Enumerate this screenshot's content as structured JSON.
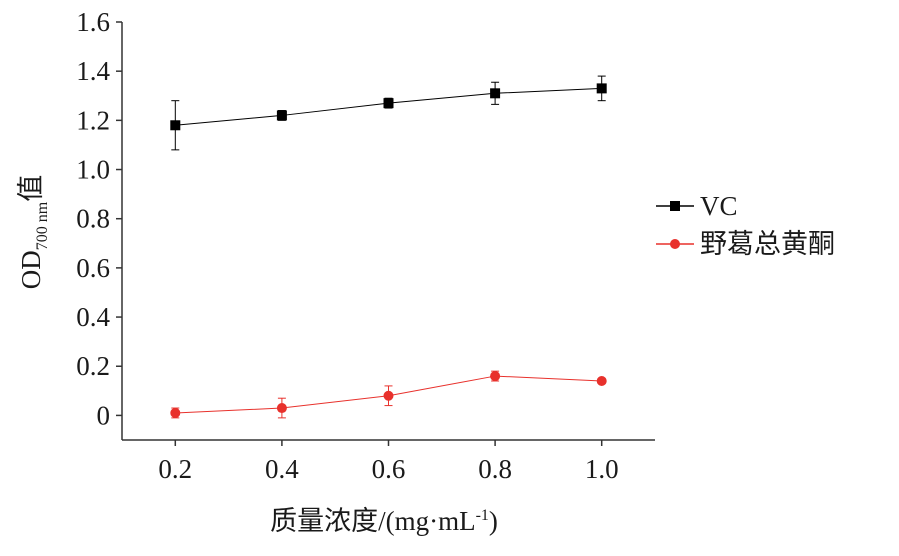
{
  "chart_data": {
    "type": "line",
    "title": "",
    "xlabel": "质量浓度/(mg·mL",
    "xlabel_sup": "-1",
    "xlabel_end": ")",
    "ylabel": "OD",
    "ylabel_sub": "700 nm",
    "ylabel_end": "值",
    "x": [
      0.2,
      0.4,
      0.6,
      0.8,
      1.0
    ],
    "x_tick_labels": [
      "0.2",
      "0.4",
      "0.6",
      "0.8",
      "1.0"
    ],
    "xlim": [
      0.1,
      1.1
    ],
    "ylim": [
      -0.1,
      1.6
    ],
    "y_ticks": [
      0,
      0.2,
      0.4,
      0.6,
      0.8,
      1.0,
      1.2,
      1.4,
      1.6
    ],
    "y_tick_labels": [
      "0",
      "0.2",
      "0.4",
      "0.6",
      "0.8",
      "1.0",
      "1.2",
      "1.4",
      "1.6"
    ],
    "grid": false,
    "legend_position": "right",
    "series": [
      {
        "name": "VC",
        "marker": "square",
        "color": "#000000",
        "values": [
          1.18,
          1.22,
          1.27,
          1.31,
          1.33
        ],
        "errors": [
          0.1,
          0.02,
          0.02,
          0.045,
          0.05
        ]
      },
      {
        "name": "野葛总黄酮",
        "marker": "circle",
        "color": "#e8312c",
        "values": [
          0.01,
          0.03,
          0.08,
          0.16,
          0.14
        ],
        "errors": [
          0.02,
          0.04,
          0.04,
          0.02,
          0.01
        ]
      }
    ]
  }
}
